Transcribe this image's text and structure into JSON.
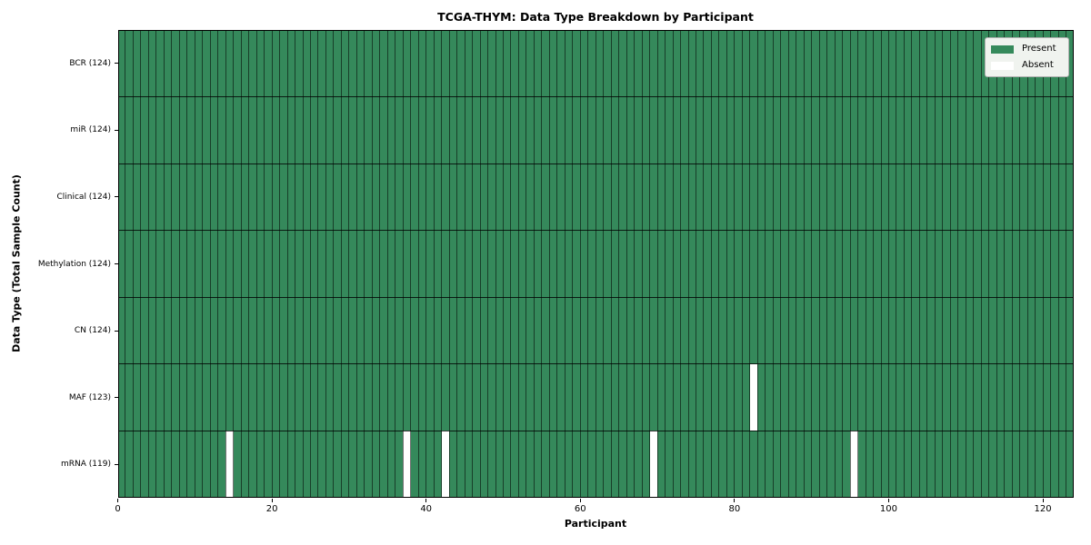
{
  "chart_data": {
    "type": "heatmap",
    "title": "TCGA-THYM: Data Type Breakdown by Participant",
    "xlabel": "Participant",
    "ylabel": "Data Type (Total Sample Count)",
    "n_participants": 124,
    "xlim": [
      0,
      124
    ],
    "x_ticks": [
      0,
      20,
      40,
      60,
      80,
      100,
      120
    ],
    "rows": [
      {
        "data_type": "BCR",
        "label": "BCR (124)",
        "total_samples": 124,
        "absent_participants": []
      },
      {
        "data_type": "miR",
        "label": "miR (124)",
        "total_samples": 124,
        "absent_participants": []
      },
      {
        "data_type": "Clinical",
        "label": "Clinical (124)",
        "total_samples": 124,
        "absent_participants": []
      },
      {
        "data_type": "Methylation",
        "label": "Methylation (124)",
        "total_samples": 124,
        "absent_participants": []
      },
      {
        "data_type": "CN",
        "label": "CN (124)",
        "total_samples": 124,
        "absent_participants": []
      },
      {
        "data_type": "MAF",
        "label": "MAF (123)",
        "total_samples": 123,
        "absent_participants": [
          82
        ]
      },
      {
        "data_type": "mRNA",
        "label": "mRNA (119)",
        "total_samples": 119,
        "absent_participants": [
          14,
          37,
          42,
          69,
          95
        ]
      }
    ],
    "legend": {
      "position": "upper right",
      "entries": [
        {
          "label": "Present",
          "color": "#35895b"
        },
        {
          "label": "Absent",
          "color": "#ffffff"
        }
      ]
    },
    "colors": {
      "present": "#35895b",
      "absent": "#ffffff",
      "cell_edge": "rgba(0,0,0,0.55)",
      "row_divider": "rgba(0,0,0,0.8)",
      "spine": "#000000",
      "background": "#ffffff"
    }
  }
}
